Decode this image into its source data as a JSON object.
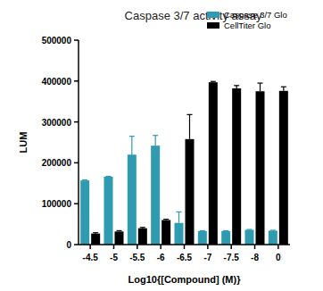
{
  "chart_data": {
    "type": "bar",
    "title": "Caspase 3/7 activity assay",
    "x_label": "Log10{[Compound] (M)}",
    "y_label": "LUM",
    "categories": [
      "-4.5",
      "-5",
      "-5.5",
      "-6",
      "-6.5",
      "-7",
      "-7.5",
      "-8",
      "0"
    ],
    "series": [
      {
        "name": "Caspase 3/7 Glo",
        "color": "#2f9bb0",
        "values": [
          157000,
          166000,
          220000,
          242000,
          53000,
          33000,
          33000,
          36000,
          34000
        ],
        "errors": [
          1000,
          1000,
          45000,
          25000,
          27000,
          1000,
          1000,
          1000,
          1000
        ]
      },
      {
        "name": "CellTiter Glo",
        "color": "#000000",
        "values": [
          27000,
          32000,
          40000,
          60000,
          258000,
          397000,
          382000,
          375000,
          376000
        ],
        "errors": [
          2000,
          2000,
          2000,
          2000,
          60000,
          2000,
          7000,
          20000,
          10000
        ]
      }
    ],
    "ylim": [
      0,
      500000
    ],
    "yticks": [
      0,
      100000,
      200000,
      300000,
      400000,
      500000
    ],
    "grid": false,
    "legend": "top-right"
  }
}
